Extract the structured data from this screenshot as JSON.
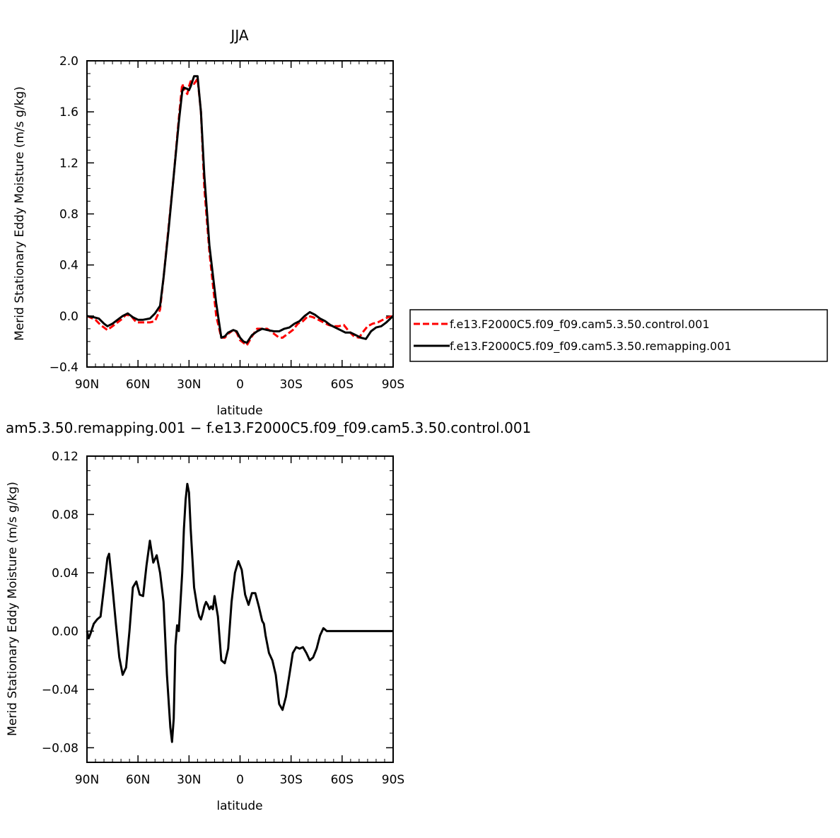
{
  "chart_data": [
    {
      "type": "line",
      "title": "JJA",
      "xlabel": "latitude",
      "ylabel": "Merid Stationary Eddy Moisture (m/s g/kg)",
      "xlim": [
        90,
        -90
      ],
      "ylim": [
        -0.4,
        2.0
      ],
      "x_ticks": [
        90,
        60,
        30,
        0,
        -30,
        -60,
        -90
      ],
      "x_tick_labels": [
        "90N",
        "60N",
        "30N",
        "0",
        "30S",
        "60S",
        "90S"
      ],
      "y_ticks": [
        -0.4,
        0.0,
        0.4,
        0.8,
        1.2,
        1.6,
        2.0
      ],
      "y_tick_labels": [
        "−0.4",
        "0.0",
        "0.4",
        "0.8",
        "1.2",
        "1.6",
        "2.0"
      ],
      "legend_position": "right",
      "series": [
        {
          "name": "f.e13.F2000C5.f09_f09.cam5.3.50.control.001",
          "color": "#ff0000",
          "dash": "dashed",
          "x": [
            90,
            85,
            82,
            78,
            74,
            70,
            67,
            64,
            61,
            57,
            53,
            50,
            47,
            45,
            42,
            39,
            36,
            34,
            33,
            31,
            30,
            29,
            27,
            25,
            23,
            21,
            18,
            14,
            11,
            9,
            7,
            4,
            2,
            0,
            -2,
            -4,
            -7,
            -10,
            -13,
            -16,
            -20,
            -23,
            -25,
            -28,
            -31,
            -34,
            -37,
            -40,
            -43,
            -46,
            -49,
            -52,
            -55,
            -58,
            -61,
            -64,
            -67,
            -70,
            -72,
            -75,
            -78,
            -81,
            -84,
            -87,
            -90
          ],
          "y": [
            0.0,
            -0.03,
            -0.07,
            -0.11,
            -0.07,
            -0.03,
            0.01,
            0.0,
            -0.05,
            -0.05,
            -0.05,
            -0.04,
            0.05,
            0.3,
            0.7,
            1.1,
            1.55,
            1.82,
            1.78,
            1.74,
            1.8,
            1.84,
            1.82,
            1.86,
            1.6,
            1.0,
            0.5,
            0.0,
            -0.17,
            -0.17,
            -0.14,
            -0.11,
            -0.13,
            -0.19,
            -0.21,
            -0.23,
            -0.16,
            -0.1,
            -0.1,
            -0.1,
            -0.14,
            -0.17,
            -0.17,
            -0.14,
            -0.11,
            -0.06,
            -0.04,
            0.0,
            -0.01,
            -0.03,
            -0.05,
            -0.07,
            -0.08,
            -0.08,
            -0.07,
            -0.12,
            -0.16,
            -0.17,
            -0.13,
            -0.08,
            -0.06,
            -0.05,
            -0.03,
            -0.01,
            0.0
          ]
        },
        {
          "name": "f.e13.F2000C5.f09_f09.cam5.3.50.remapping.001",
          "color": "#000000",
          "dash": "solid",
          "x": [
            90,
            86,
            83,
            80,
            78,
            75,
            72,
            69,
            66,
            63,
            60,
            57,
            53,
            50,
            47,
            45,
            42,
            39,
            36,
            34,
            33,
            31,
            30,
            29,
            27,
            25,
            23,
            21,
            18,
            14,
            11,
            9,
            7,
            4,
            2,
            0,
            -2,
            -4,
            -7,
            -10,
            -13,
            -16,
            -20,
            -23,
            -26,
            -29,
            -32,
            -35,
            -38,
            -41,
            -44,
            -47,
            -50,
            -53,
            -56,
            -59,
            -62,
            -65,
            -68,
            -71,
            -74,
            -77,
            -80,
            -83,
            -86,
            -90
          ],
          "y": [
            0.0,
            -0.01,
            -0.02,
            -0.06,
            -0.08,
            -0.06,
            -0.03,
            0.0,
            0.02,
            -0.01,
            -0.03,
            -0.03,
            -0.02,
            0.02,
            0.08,
            0.3,
            0.68,
            1.1,
            1.52,
            1.76,
            1.79,
            1.78,
            1.77,
            1.8,
            1.88,
            1.88,
            1.6,
            1.1,
            0.55,
            0.1,
            -0.17,
            -0.16,
            -0.13,
            -0.11,
            -0.12,
            -0.17,
            -0.2,
            -0.21,
            -0.15,
            -0.12,
            -0.1,
            -0.11,
            -0.12,
            -0.12,
            -0.1,
            -0.09,
            -0.06,
            -0.04,
            0.0,
            0.03,
            0.01,
            -0.02,
            -0.04,
            -0.07,
            -0.09,
            -0.11,
            -0.13,
            -0.13,
            -0.15,
            -0.17,
            -0.18,
            -0.12,
            -0.09,
            -0.08,
            -0.05,
            0.0
          ]
        }
      ]
    },
    {
      "type": "line",
      "title": "am5.3.50.remapping.001 − f.e13.F2000C5.f09_f09.cam5.3.50.control.001",
      "xlabel": "latitude",
      "ylabel": "Merid Stationary Eddy Moisture (m/s g/kg)",
      "xlim": [
        90,
        -90
      ],
      "ylim": [
        -0.09,
        0.12
      ],
      "x_ticks": [
        90,
        60,
        30,
        0,
        -30,
        -60,
        -90
      ],
      "x_tick_labels": [
        "90N",
        "60N",
        "30N",
        "0",
        "30S",
        "60S",
        "90S"
      ],
      "y_ticks": [
        -0.08,
        -0.04,
        0.0,
        0.04,
        0.08,
        0.12
      ],
      "y_tick_labels": [
        "−0.08",
        "−0.04",
        "0.00",
        "0.04",
        "0.08",
        "0.12"
      ],
      "series": [
        {
          "color": "#000000",
          "dash": "solid",
          "x": [
            90,
            89,
            88,
            86,
            84,
            82,
            80,
            78,
            77,
            75,
            73,
            71,
            69,
            67,
            65,
            63,
            61,
            59,
            57,
            55,
            53,
            51,
            49,
            47,
            45,
            43,
            41,
            40,
            39,
            38,
            37,
            36,
            35,
            34,
            33,
            32,
            31,
            30,
            29,
            28,
            27,
            25,
            24,
            23,
            22,
            21,
            20,
            19,
            18,
            17,
            16,
            15,
            13,
            11,
            9,
            7,
            5,
            3,
            1,
            -1,
            -3,
            -5,
            -7,
            -9,
            -11,
            -13,
            -14,
            -15,
            -17,
            -19,
            -21,
            -23,
            -25,
            -27,
            -29,
            -31,
            -33,
            -35,
            -37,
            -39,
            -41,
            -43,
            -45,
            -47,
            -49,
            -51,
            -53,
            -55,
            -57,
            -59,
            -61,
            -62,
            -64,
            -66,
            -68,
            -70,
            -72,
            -74,
            -76,
            -78,
            -80,
            -82,
            -84,
            -86,
            -88,
            -90
          ],
          "y": [
            0.0,
            -0.005,
            -0.002,
            0.005,
            0.008,
            0.01,
            0.03,
            0.05,
            0.053,
            0.03,
            0.005,
            -0.018,
            -0.03,
            -0.025,
            0.0,
            0.03,
            0.034,
            0.025,
            0.024,
            0.045,
            0.062,
            0.047,
            0.052,
            0.04,
            0.02,
            -0.03,
            -0.066,
            -0.076,
            -0.06,
            -0.01,
            0.004,
            0.0,
            0.02,
            0.04,
            0.07,
            0.09,
            0.101,
            0.095,
            0.07,
            0.05,
            0.03,
            0.015,
            0.01,
            0.008,
            0.012,
            0.017,
            0.02,
            0.018,
            0.015,
            0.017,
            0.015,
            0.024,
            0.01,
            -0.02,
            -0.022,
            -0.012,
            0.02,
            0.04,
            0.048,
            0.042,
            0.025,
            0.018,
            0.026,
            0.026,
            0.017,
            0.007,
            0.005,
            -0.003,
            -0.015,
            -0.02,
            -0.03,
            -0.05,
            -0.054,
            -0.045,
            -0.03,
            -0.015,
            -0.011,
            -0.012,
            -0.011,
            -0.015,
            -0.02,
            -0.018,
            -0.012,
            -0.003,
            0.002,
            0.0,
            0.0,
            0.0,
            0.0,
            0.0,
            0.0,
            0.0,
            0.0,
            0.0,
            0.0,
            0.0,
            0.0,
            0.0,
            0.0,
            0.0,
            0.0,
            0.0,
            0.0,
            0.0,
            0.0,
            0.0
          ]
        }
      ]
    }
  ]
}
